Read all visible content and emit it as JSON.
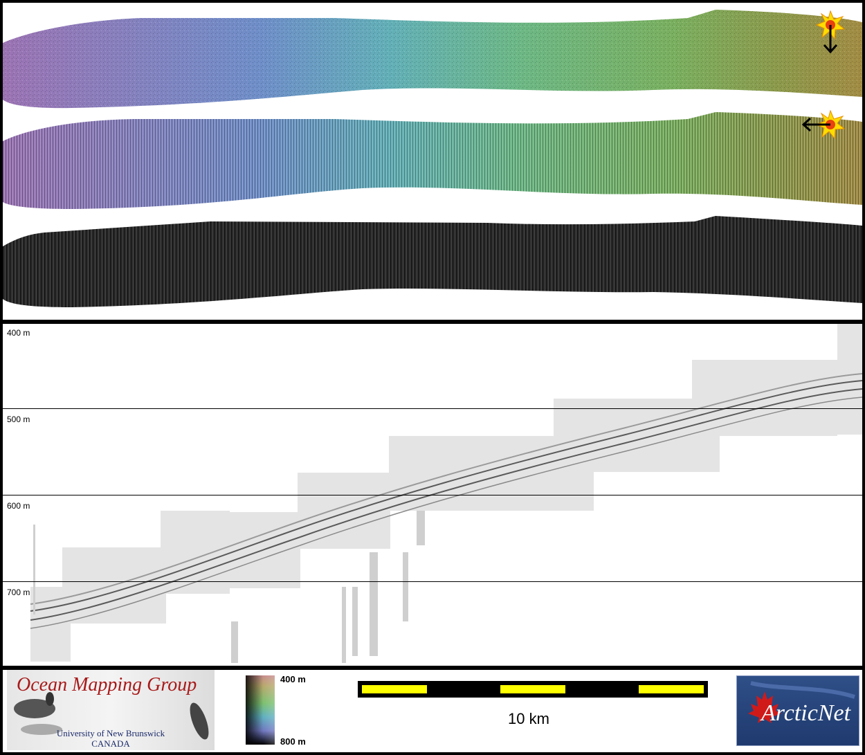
{
  "profile": {
    "depth_labels": [
      "400 m",
      "500 m",
      "600 m",
      "700 m"
    ]
  },
  "legend": {
    "logo_title": "Ocean Mapping Group",
    "logo_university": "University of New Brunswick",
    "logo_country": "CANADA",
    "colorbar_top": "400 m",
    "colorbar_bottom": "800 m",
    "scale_label": "10 km",
    "arcticnet_logo": "ArcticNet"
  },
  "icons": {
    "sun_top": "sun-icon",
    "sun_middle": "sun-icon",
    "arrow_top": "arrow-down-icon",
    "arrow_middle": "arrow-left-icon"
  },
  "colors": {
    "frame": "#000000",
    "scale_bar_fill": "#ffff00",
    "logo_title_color": "#a81a1a",
    "arcticnet_background": "#1f3a6e",
    "maple_leaf": "#d01a1a"
  }
}
